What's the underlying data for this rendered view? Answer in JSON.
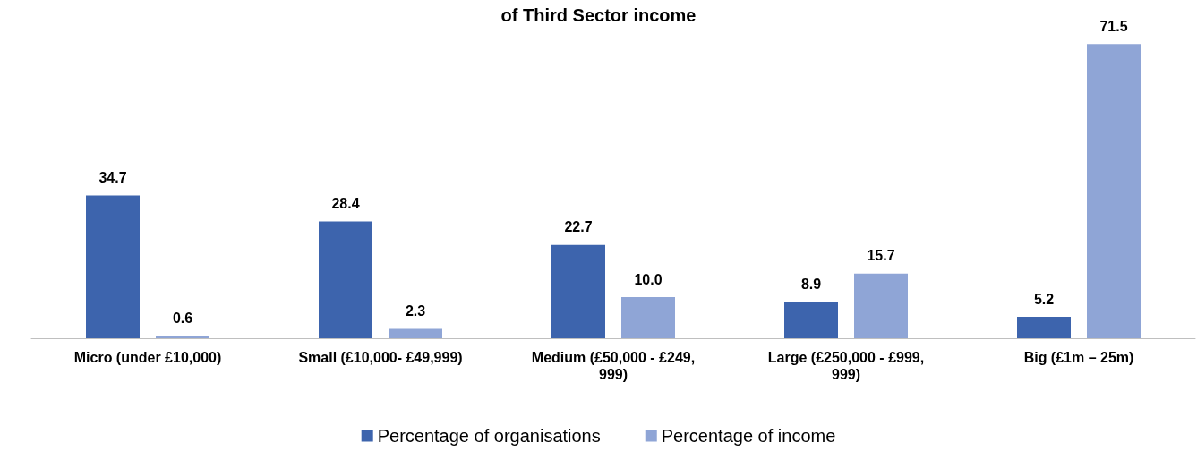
{
  "chart_data": {
    "type": "bar",
    "title": "of Third Sector income",
    "categories": [
      "Micro (under £10,000)",
      "Small (£10,000- £49,999)",
      "Medium (£50,000 - £249,999)",
      "Large (£250,000 - £999,999)",
      "Big (£1m – 25m)"
    ],
    "series": [
      {
        "name": "Percentage of organisations",
        "color": "#3d64ad",
        "values": [
          34.7,
          28.4,
          22.7,
          8.9,
          5.2
        ]
      },
      {
        "name": "Percentage of income",
        "color": "#8fa5d6",
        "values": [
          0.6,
          2.3,
          10.0,
          15.7,
          71.5
        ],
        "value_labels": [
          "0.6",
          "2.3",
          "10.0",
          "15.7",
          "71.5"
        ]
      }
    ],
    "data_labels": true,
    "legend": "bottom",
    "tick_labels": "x"
  }
}
